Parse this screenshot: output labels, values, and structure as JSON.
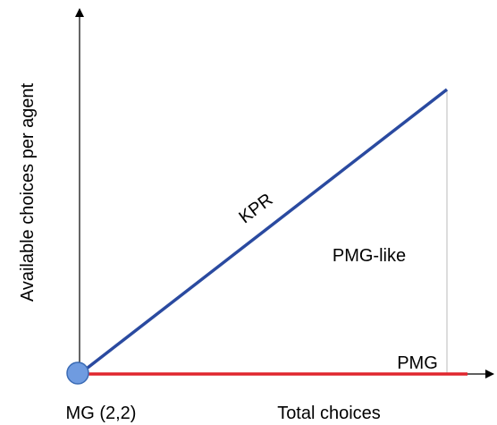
{
  "axes": {
    "x_label": "Total choices",
    "y_label": "Available choices per agent"
  },
  "origin": {
    "label": "MG (2,2)"
  },
  "lines": {
    "kpr": {
      "label": "KPR"
    },
    "pmg": {
      "label": "PMG"
    }
  },
  "regions": {
    "pmg_like": {
      "label": "PMG-like"
    }
  }
}
